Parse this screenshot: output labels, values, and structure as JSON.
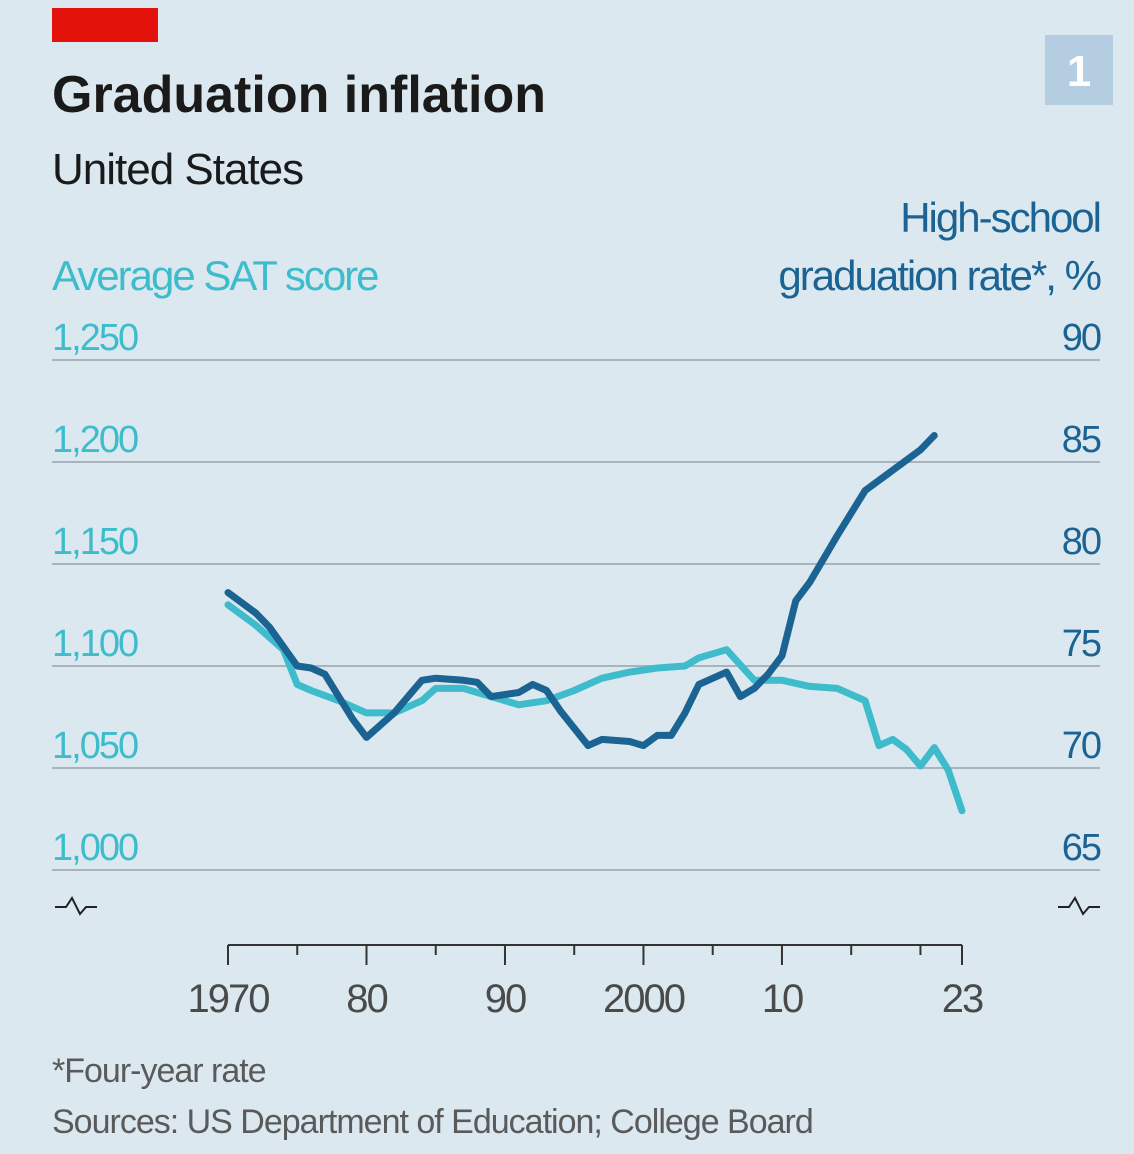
{
  "chart_data": {
    "type": "line",
    "title": "Graduation inflation",
    "subtitle": "United States",
    "chart_number": "1",
    "y_label": "Average SAT score",
    "y2_label": [
      "High-school",
      "graduation rate*, %"
    ],
    "ylim": [
      1000,
      1250
    ],
    "yticks": [
      {
        "value": 1000,
        "label": "1,000"
      },
      {
        "value": 1050,
        "label": "1,050"
      },
      {
        "value": 1100,
        "label": "1,100"
      },
      {
        "value": 1150,
        "label": "1,150"
      },
      {
        "value": 1200,
        "label": "1,200"
      },
      {
        "value": 1250,
        "label": "1,250"
      }
    ],
    "y2lim": [
      65,
      90
    ],
    "y2ticks": [
      65,
      70,
      75,
      80,
      85,
      90
    ],
    "xlim": [
      1970,
      2023
    ],
    "xticks": [
      {
        "value": 1970,
        "label": "1970"
      },
      {
        "value": 1980,
        "label": "80"
      },
      {
        "value": 1990,
        "label": "90"
      },
      {
        "value": 2000,
        "label": "2000"
      },
      {
        "value": 2010,
        "label": "10"
      },
      {
        "value": 2023,
        "label": "23"
      }
    ],
    "xticks_minor": [
      1975,
      1985,
      1995,
      2005,
      2015,
      2020
    ],
    "grid": true,
    "series": [
      {
        "name": "Average SAT score",
        "color": "#3fbccb",
        "axis": "y",
        "x": [
          1970,
          1972,
          1974,
          1975,
          1976,
          1978,
          1980,
          1982,
          1984,
          1985,
          1987,
          1989,
          1991,
          1993,
          1995,
          1997,
          1999,
          2001,
          2003,
          2004,
          2006,
          2008,
          2010,
          2012,
          2014,
          2016,
          2017,
          2018,
          2019,
          2020,
          2021,
          2022,
          2023
        ],
        "values": [
          1130,
          1120,
          1108,
          1091,
          1088,
          1083,
          1077,
          1077,
          1083,
          1089,
          1089,
          1085,
          1081,
          1083,
          1088,
          1094,
          1097,
          1099,
          1100,
          1104,
          1108,
          1093,
          1093,
          1090,
          1089,
          1083,
          1061,
          1064,
          1059,
          1051,
          1060,
          1049,
          1029
        ]
      },
      {
        "name": "High-school graduation rate*, %",
        "color": "#1b6392",
        "axis": "y2",
        "x": [
          1970,
          1972,
          1973,
          1975,
          1976,
          1977,
          1979,
          1980,
          1982,
          1984,
          1985,
          1987,
          1988,
          1989,
          1991,
          1992,
          1993,
          1994,
          1996,
          1997,
          1999,
          2000,
          2001,
          2002,
          2003,
          2004,
          2006,
          2007,
          2008,
          2009,
          2010,
          2011,
          2012,
          2014,
          2016,
          2018,
          2020,
          2021
        ],
        "values": [
          78.6,
          77.6,
          76.9,
          75.0,
          74.9,
          74.6,
          72.4,
          71.5,
          72.7,
          74.3,
          74.4,
          74.3,
          74.2,
          73.5,
          73.7,
          74.1,
          73.8,
          72.8,
          71.1,
          71.4,
          71.3,
          71.1,
          71.6,
          71.6,
          72.7,
          74.1,
          74.7,
          73.5,
          73.9,
          74.6,
          75.5,
          78.2,
          79.1,
          81.4,
          83.6,
          84.6,
          85.6,
          86.3
        ]
      }
    ],
    "footnote": "*Four-year rate",
    "source": "Sources: US Department of Education; College Board"
  }
}
